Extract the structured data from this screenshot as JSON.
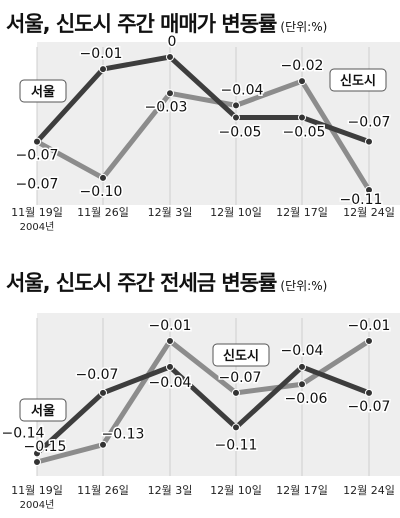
{
  "chart_data": [
    {
      "type": "line",
      "title": "서울, 신도시 주간 매매가 변동률",
      "unit": "(단위:%)",
      "categories": [
        "11월 19일",
        "11월 26일",
        "12월 3일",
        "12월 10일",
        "12월 17일",
        "12월 24일"
      ],
      "year_note": "2004년",
      "series": [
        {
          "name": "서울",
          "color": "#3d3d3d",
          "values": [
            -0.07,
            -0.01,
            0,
            -0.05,
            -0.05,
            -0.07
          ]
        },
        {
          "name": "신도시",
          "color": "#8c8c8c",
          "values": [
            -0.07,
            -0.1,
            -0.03,
            -0.04,
            -0.02,
            -0.11
          ]
        }
      ],
      "ylim": [
        -0.11,
        0
      ],
      "grid": false
    },
    {
      "type": "line",
      "title": "서울, 신도시 주간 전세금 변동률",
      "unit": "(단위:%)",
      "categories": [
        "11월 19일",
        "11월 26일",
        "12월 3일",
        "12월 10일",
        "12월 17일",
        "12월 24일"
      ],
      "year_note": "2004년",
      "series": [
        {
          "name": "서울",
          "color": "#3d3d3d",
          "values": [
            -0.14,
            -0.07,
            -0.04,
            -0.11,
            -0.04,
            -0.07
          ]
        },
        {
          "name": "신도시",
          "color": "#8c8c8c",
          "values": [
            -0.15,
            -0.13,
            -0.01,
            -0.07,
            -0.06,
            -0.01
          ]
        }
      ],
      "ylim": [
        -0.15,
        -0.01
      ],
      "grid": false
    }
  ]
}
